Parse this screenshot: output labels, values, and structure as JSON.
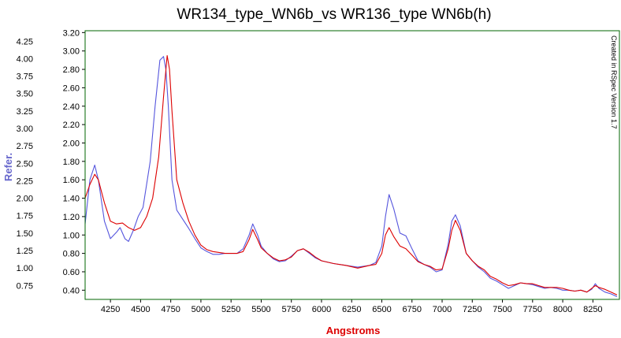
{
  "chart_data": {
    "type": "line",
    "title": "WR134_type_WN6b_vs WR136_type WN6b(h)",
    "xlabel": "Angstroms",
    "ylabel": "Refer.",
    "annotation": "Created in RSpec Version 1.7",
    "xlim": [
      4040,
      8470
    ],
    "ylim_left": [
      0.55,
      4.4
    ],
    "ylim_right": [
      0.3,
      3.22
    ],
    "x_ticks": [
      4250,
      4500,
      4750,
      5000,
      5250,
      5500,
      5750,
      6000,
      6250,
      6500,
      6750,
      7000,
      7250,
      7500,
      7750,
      8000,
      8250
    ],
    "y_ticks_left": [
      "4.25",
      "4.00",
      "3.75",
      "3.50",
      "3.25",
      "3.00",
      "2.75",
      "2.50",
      "2.25",
      "2.00",
      "1.75",
      "1.50",
      "1.25",
      "1.00",
      "0.75"
    ],
    "y_ticks_right": [
      "3.20",
      "3.00",
      "2.80",
      "2.60",
      "2.40",
      "2.20",
      "2.00",
      "1.80",
      "1.60",
      "1.40",
      "1.20",
      "1.00",
      "0.80",
      "0.60",
      "0.40"
    ],
    "colors": {
      "blue": "#5555dd",
      "red": "#dd0000",
      "frame": "#006400",
      "ylabel": "#6666cc",
      "xlabel": "#dd0000"
    },
    "series": [
      {
        "color": "#5555dd",
        "x": [
          4040,
          4080,
          4120,
          4150,
          4200,
          4250,
          4300,
          4330,
          4370,
          4400,
          4440,
          4480,
          4520,
          4580,
          4620,
          4660,
          4690,
          4710,
          4730,
          4760,
          4800,
          4850,
          4900,
          4950,
          5000,
          5050,
          5100,
          5150,
          5200,
          5300,
          5350,
          5400,
          5430,
          5470,
          5500,
          5550,
          5600,
          5650,
          5700,
          5750,
          5800,
          5850,
          5900,
          5950,
          6000,
          6100,
          6200,
          6300,
          6400,
          6450,
          6500,
          6530,
          6560,
          6600,
          6650,
          6700,
          6750,
          6800,
          6850,
          6900,
          6950,
          7000,
          7050,
          7080,
          7110,
          7150,
          7200,
          7250,
          7300,
          7350,
          7400,
          7450,
          7500,
          7550,
          7600,
          7650,
          7700,
          7750,
          7800,
          7850,
          7900,
          7950,
          8000,
          8050,
          8100,
          8150,
          8200,
          8240,
          8270,
          8300,
          8350,
          8400,
          8450
        ],
        "y": [
          1.12,
          1.6,
          1.76,
          1.6,
          1.15,
          0.96,
          1.03,
          1.08,
          0.96,
          0.93,
          1.05,
          1.2,
          1.3,
          1.8,
          2.4,
          2.9,
          2.94,
          2.8,
          2.4,
          1.6,
          1.27,
          1.17,
          1.07,
          0.96,
          0.86,
          0.82,
          0.79,
          0.79,
          0.8,
          0.8,
          0.85,
          1.0,
          1.12,
          1.0,
          0.88,
          0.8,
          0.74,
          0.71,
          0.72,
          0.77,
          0.83,
          0.85,
          0.8,
          0.75,
          0.72,
          0.69,
          0.67,
          0.65,
          0.67,
          0.7,
          0.88,
          1.2,
          1.44,
          1.28,
          1.02,
          0.99,
          0.85,
          0.72,
          0.68,
          0.65,
          0.6,
          0.62,
          0.9,
          1.15,
          1.22,
          1.1,
          0.8,
          0.72,
          0.65,
          0.6,
          0.53,
          0.5,
          0.46,
          0.42,
          0.45,
          0.48,
          0.47,
          0.46,
          0.44,
          0.42,
          0.43,
          0.42,
          0.4,
          0.4,
          0.39,
          0.4,
          0.38,
          0.41,
          0.47,
          0.42,
          0.38,
          0.36,
          0.33
        ]
      },
      {
        "color": "#dd0000",
        "x": [
          4040,
          4080,
          4120,
          4150,
          4200,
          4250,
          4300,
          4350,
          4400,
          4450,
          4500,
          4550,
          4600,
          4650,
          4690,
          4720,
          4740,
          4760,
          4800,
          4850,
          4900,
          4950,
          5000,
          5050,
          5100,
          5150,
          5200,
          5300,
          5350,
          5400,
          5430,
          5470,
          5500,
          5550,
          5600,
          5650,
          5700,
          5750,
          5800,
          5850,
          5900,
          5950,
          6000,
          6100,
          6200,
          6300,
          6400,
          6450,
          6500,
          6530,
          6560,
          6600,
          6650,
          6700,
          6750,
          6800,
          6850,
          6900,
          6950,
          7000,
          7050,
          7080,
          7110,
          7150,
          7200,
          7250,
          7300,
          7350,
          7400,
          7450,
          7500,
          7550,
          7600,
          7650,
          7700,
          7750,
          7800,
          7850,
          7900,
          7950,
          8000,
          8050,
          8100,
          8150,
          8200,
          8240,
          8270,
          8300,
          8350,
          8400,
          8450
        ],
        "y": [
          1.4,
          1.55,
          1.66,
          1.6,
          1.35,
          1.15,
          1.12,
          1.13,
          1.08,
          1.05,
          1.08,
          1.2,
          1.4,
          1.85,
          2.5,
          2.95,
          2.8,
          2.35,
          1.6,
          1.35,
          1.15,
          1.0,
          0.89,
          0.84,
          0.82,
          0.81,
          0.8,
          0.8,
          0.82,
          0.95,
          1.06,
          0.95,
          0.86,
          0.8,
          0.75,
          0.72,
          0.73,
          0.76,
          0.83,
          0.85,
          0.81,
          0.76,
          0.72,
          0.69,
          0.67,
          0.64,
          0.67,
          0.68,
          0.8,
          1.0,
          1.08,
          0.98,
          0.88,
          0.85,
          0.78,
          0.71,
          0.68,
          0.66,
          0.62,
          0.63,
          0.85,
          1.05,
          1.16,
          1.05,
          0.8,
          0.72,
          0.66,
          0.62,
          0.55,
          0.52,
          0.48,
          0.45,
          0.46,
          0.48,
          0.47,
          0.47,
          0.45,
          0.43,
          0.43,
          0.43,
          0.42,
          0.4,
          0.39,
          0.4,
          0.38,
          0.42,
          0.45,
          0.43,
          0.41,
          0.38,
          0.35
        ]
      }
    ]
  }
}
